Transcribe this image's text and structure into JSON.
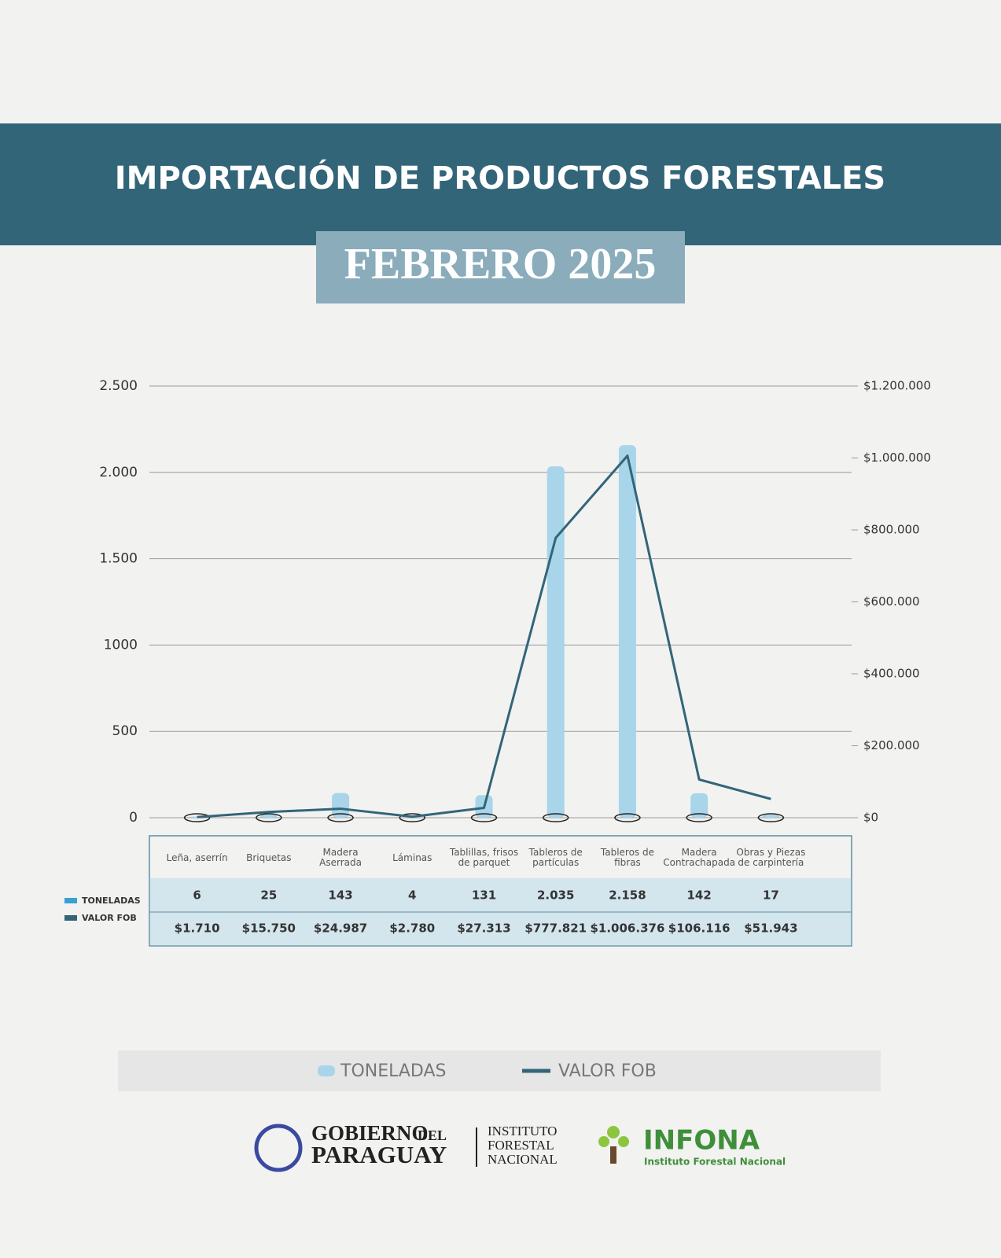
{
  "chart_data": {
    "type": "bar",
    "title": "IMPORTACIÓN DE PRODUCTOS FORESTALES",
    "subtitle": "FEBRERO 2025",
    "categories": [
      "Leña, aserrín",
      "Briquetas",
      "Madera Aserrada",
      "Láminas",
      "Tablillas, frisos de parquet",
      "Tableros de partículas",
      "Tableros de fibras",
      "Madera Contrachapada",
      "Obras y Piezas de carpintería"
    ],
    "series": [
      {
        "name": "TONELADAS",
        "color": "#a8d5e9",
        "values": [
          6,
          25,
          143,
          4,
          131,
          2035,
          2158,
          142,
          17
        ],
        "value_labels": [
          "6",
          "25",
          "143",
          "4",
          "131",
          "2.035",
          "2.158",
          "142",
          "17"
        ]
      },
      {
        "name": "VALOR FOB",
        "color": "#336579",
        "axis": "y2",
        "values": [
          1710,
          15750,
          24987,
          2780,
          27313,
          777821,
          1006376,
          106116,
          51943
        ],
        "value_labels": [
          "$1.710",
          "$15.750",
          "$24.987",
          "$2.780",
          "$27.313",
          "$777.821",
          "$1.006.376",
          "$106.116",
          "$51.943"
        ]
      }
    ],
    "ylim": [
      0,
      2500
    ],
    "yticks": [
      0,
      500,
      1000,
      {
        "value": 1500,
        "label": "1.500"
      },
      {
        "value": 2000,
        "label": "2.000"
      },
      {
        "value": 2500,
        "label": "2.500"
      }
    ],
    "y2lim": [
      0,
      1200000
    ],
    "y2ticks": [
      {
        "value": 0,
        "label": "$0"
      },
      {
        "value": 200000,
        "label": "$200.000"
      },
      {
        "value": 400000,
        "label": "$400.000"
      },
      {
        "value": 600000,
        "label": "$600.000"
      },
      {
        "value": 800000,
        "label": "$800.000"
      },
      {
        "value": 1000000,
        "label": "$1.000.000"
      },
      {
        "value": 1200000,
        "label": "$1.200.000"
      }
    ],
    "grid": true
  },
  "footer": {
    "government": [
      "GOBIERNO",
      "DEL",
      "PARAGUAY"
    ],
    "institute": [
      "INSTITUTO",
      "FORESTAL",
      "NACIONAL"
    ],
    "brand": "INFONA",
    "brand_subtitle": "Instituto Forestal Nacional"
  }
}
